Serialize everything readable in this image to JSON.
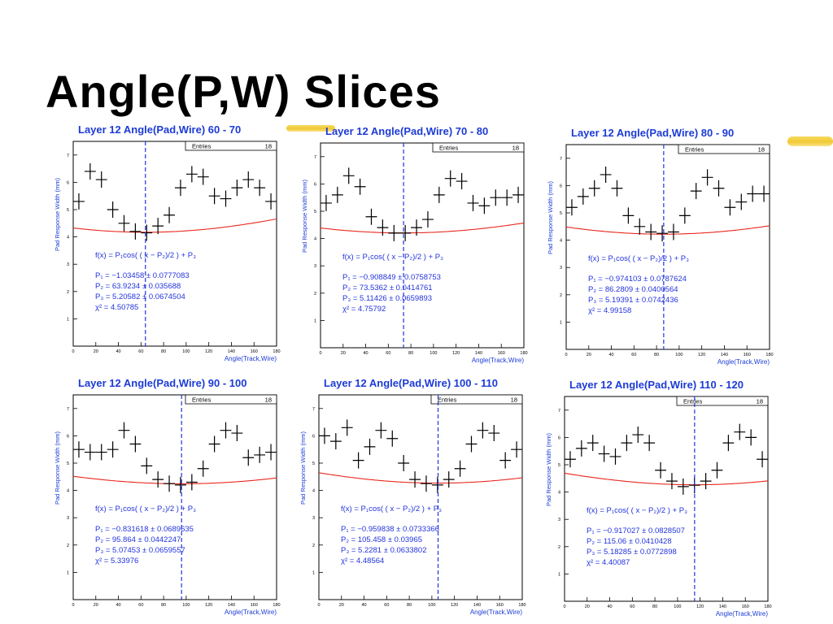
{
  "slide": {
    "title": "Angle(P,W) Slices"
  },
  "colors": {
    "title_blue": "#1c3bd6",
    "fit_red": "#e8261c",
    "marker_blue": "#2233dd",
    "data_black": "#000000",
    "accent_yellow": "#efc320"
  },
  "chart_data": [
    {
      "type": "scatter",
      "title": "Layer  12 Angle(Pad,Wire)  60 - 70",
      "xlabel": "Angle(Track,Wire)",
      "ylabel": "Pad Response Width (mm)",
      "xlim": [
        0,
        180
      ],
      "ylim": [
        0,
        7.5
      ],
      "xticks": [
        "0",
        "20",
        "40",
        "60",
        "80",
        "100",
        "120",
        "140",
        "160",
        "180"
      ],
      "yticks": [
        "1",
        "2",
        "3",
        "4",
        "5",
        "6",
        "7"
      ],
      "stats": {
        "label": "Entries",
        "value": "18"
      },
      "fit": {
        "formula": "f(x) = P₁cos( ( x − P₂)/2 ) + P₃",
        "p1": -1.03458,
        "p2": 63.9234,
        "p3": 5.20582,
        "lines": [
          "P₁ = −1.03458 ± 0.0777083",
          "P₂ = 63.9234 ± 0.035688",
          "P₃ = 5.20582 ± 0.0674504",
          "χ² = 4.50785"
        ]
      },
      "marker_x": 63.9,
      "points": [
        [
          5,
          5.3
        ],
        [
          15,
          6.4
        ],
        [
          25,
          6.1
        ],
        [
          35,
          5.0
        ],
        [
          45,
          4.5
        ],
        [
          55,
          4.2
        ],
        [
          65,
          4.15
        ],
        [
          75,
          4.4
        ],
        [
          85,
          4.8
        ],
        [
          95,
          5.8
        ],
        [
          105,
          6.3
        ],
        [
          115,
          6.2
        ],
        [
          125,
          5.5
        ],
        [
          135,
          5.4
        ],
        [
          145,
          5.8
        ],
        [
          155,
          6.1
        ],
        [
          165,
          5.8
        ],
        [
          175,
          5.3
        ]
      ]
    },
    {
      "type": "scatter",
      "title": "Layer  12 Angle(Pad,Wire)  70 - 80",
      "xlabel": "Angle(Track,Wire)",
      "ylabel": "Pad Response Width (mm)",
      "xlim": [
        0,
        180
      ],
      "ylim": [
        0,
        7.5
      ],
      "xticks": [
        "0",
        "20",
        "40",
        "60",
        "80",
        "100",
        "120",
        "140",
        "160",
        "180"
      ],
      "yticks": [
        "1",
        "2",
        "3",
        "4",
        "5",
        "6",
        "7"
      ],
      "stats": {
        "label": "Entries",
        "value": "18"
      },
      "fit": {
        "formula": "f(x) = P₁cos( ( x − P₂)/2 ) + P₃",
        "p1": -0.908849,
        "p2": 73.5362,
        "p3": 5.11426,
        "lines": [
          "P₁ = −0.908849 ± 0.0758753",
          "P₂ = 73.5362 ± 0.0414761",
          "P₃ = 5.11426 ± 0.0659893",
          "χ² = 4.75792"
        ]
      },
      "marker_x": 73.5,
      "points": [
        [
          5,
          5.3
        ],
        [
          15,
          5.6
        ],
        [
          25,
          6.3
        ],
        [
          35,
          5.9
        ],
        [
          45,
          4.8
        ],
        [
          55,
          4.4
        ],
        [
          65,
          4.2
        ],
        [
          75,
          4.2
        ],
        [
          85,
          4.4
        ],
        [
          95,
          4.7
        ],
        [
          105,
          5.6
        ],
        [
          115,
          6.2
        ],
        [
          125,
          6.1
        ],
        [
          135,
          5.3
        ],
        [
          145,
          5.2
        ],
        [
          155,
          5.5
        ],
        [
          165,
          5.5
        ],
        [
          175,
          5.6
        ]
      ]
    },
    {
      "type": "scatter",
      "title": "Layer  12 Angle(Pad,Wire)  80 - 90",
      "xlabel": "Angle(Track,Wire)",
      "ylabel": "Pad Response Width (mm)",
      "xlim": [
        0,
        180
      ],
      "ylim": [
        0,
        7.5
      ],
      "xticks": [
        "0",
        "20",
        "40",
        "60",
        "80",
        "100",
        "120",
        "140",
        "160",
        "180"
      ],
      "yticks": [
        "1",
        "2",
        "3",
        "4",
        "5",
        "6",
        "7"
      ],
      "stats": {
        "label": "Entries",
        "value": "18"
      },
      "fit": {
        "formula": "f(x) = P₁cos( ( x − P₂)/2 ) + P₃",
        "p1": -0.974103,
        "p2": 86.2809,
        "p3": 5.19391,
        "lines": [
          "P₁ = −0.974103 ± 0.0787624",
          "P₂ = 86.2809 ± 0.0400564",
          "P₃ = 5.19391 ± 0.0742436",
          "χ² = 4.99158"
        ]
      },
      "marker_x": 86.3,
      "points": [
        [
          5,
          5.2
        ],
        [
          15,
          5.6
        ],
        [
          25,
          5.9
        ],
        [
          35,
          6.4
        ],
        [
          45,
          5.9
        ],
        [
          55,
          4.9
        ],
        [
          65,
          4.5
        ],
        [
          75,
          4.3
        ],
        [
          85,
          4.25
        ],
        [
          95,
          4.3
        ],
        [
          105,
          4.9
        ],
        [
          115,
          5.8
        ],
        [
          125,
          6.3
        ],
        [
          135,
          5.9
        ],
        [
          145,
          5.2
        ],
        [
          155,
          5.4
        ],
        [
          165,
          5.7
        ],
        [
          175,
          5.7
        ]
      ]
    },
    {
      "type": "scatter",
      "title": "Layer  12 Angle(Pad,Wire)  90 - 100",
      "xlabel": "Angle(Track,Wire)",
      "ylabel": "Pad Response Width (mm)",
      "xlim": [
        0,
        180
      ],
      "ylim": [
        0,
        7.5
      ],
      "xticks": [
        "0",
        "20",
        "40",
        "60",
        "80",
        "100",
        "120",
        "140",
        "160",
        "180"
      ],
      "yticks": [
        "1",
        "2",
        "3",
        "4",
        "5",
        "6",
        "7"
      ],
      "stats": {
        "label": "Entries",
        "value": "18"
      },
      "fit": {
        "formula": "f(x) = P₁cos( ( x − P₂)/2 ) + P₃",
        "p1": -0.831618,
        "p2": 95.864,
        "p3": 5.07453,
        "lines": [
          "P₁ = −0.831618 ± 0.0689635",
          "P₂ = 95.864 ± 0.0442247",
          "P₃ = 5.07453 ± 0.0659557",
          "χ² = 5.33976"
        ]
      },
      "marker_x": 95.9,
      "points": [
        [
          5,
          5.5
        ],
        [
          15,
          5.4
        ],
        [
          25,
          5.4
        ],
        [
          35,
          5.5
        ],
        [
          45,
          6.2
        ],
        [
          55,
          5.7
        ],
        [
          65,
          4.9
        ],
        [
          75,
          4.4
        ],
        [
          85,
          4.25
        ],
        [
          95,
          4.2
        ],
        [
          105,
          4.3
        ],
        [
          115,
          4.8
        ],
        [
          125,
          5.7
        ],
        [
          135,
          6.2
        ],
        [
          145,
          6.1
        ],
        [
          155,
          5.2
        ],
        [
          165,
          5.3
        ],
        [
          175,
          5.4
        ]
      ]
    },
    {
      "type": "scatter",
      "title": "Layer  12 Angle(Pad,Wire)  100 - 110",
      "xlabel": "Angle(Track,Wire)",
      "ylabel": "Pad Response Width (mm)",
      "xlim": [
        0,
        180
      ],
      "ylim": [
        0,
        7.5
      ],
      "xticks": [
        "0",
        "20",
        "40",
        "60",
        "80",
        "100",
        "120",
        "140",
        "160",
        "180"
      ],
      "yticks": [
        "1",
        "2",
        "3",
        "4",
        "5",
        "6",
        "7"
      ],
      "stats": {
        "label": "Entries",
        "value": "18"
      },
      "fit": {
        "formula": "f(x) = P₁cos( ( x − P₂)/2 ) + P₃",
        "p1": -0.959838,
        "p2": 105.458,
        "p3": 5.2281,
        "lines": [
          "P₁ = −0.959838 ± 0.0733366",
          "P₂ = 105.458 ± 0.03965",
          "P₃ = 5.2281 ± 0.0633802",
          "χ² = 4.48564"
        ]
      },
      "marker_x": 105.5,
      "points": [
        [
          5,
          6.0
        ],
        [
          15,
          5.8
        ],
        [
          25,
          6.3
        ],
        [
          35,
          5.1
        ],
        [
          45,
          5.6
        ],
        [
          55,
          6.2
        ],
        [
          65,
          5.9
        ],
        [
          75,
          5.0
        ],
        [
          85,
          4.4
        ],
        [
          95,
          4.25
        ],
        [
          105,
          4.2
        ],
        [
          115,
          4.4
        ],
        [
          125,
          4.8
        ],
        [
          135,
          5.7
        ],
        [
          145,
          6.2
        ],
        [
          155,
          6.1
        ],
        [
          165,
          5.1
        ],
        [
          175,
          5.5
        ]
      ]
    },
    {
      "type": "scatter",
      "title": "Layer  12 Angle(Pad,Wire)  110 - 120",
      "xlabel": "Angle(Track,Wire)",
      "ylabel": "Pad Response Width (mm)",
      "xlim": [
        0,
        180
      ],
      "ylim": [
        0,
        7.5
      ],
      "xticks": [
        "0",
        "20",
        "40",
        "60",
        "80",
        "100",
        "120",
        "140",
        "160",
        "180"
      ],
      "yticks": [
        "1",
        "2",
        "3",
        "4",
        "5",
        "6",
        "7"
      ],
      "stats": {
        "label": "Entries",
        "value": "18"
      },
      "fit": {
        "formula": "f(x) = P₁cos( ( x − P₂)/2 ) + P₃",
        "p1": -0.917027,
        "p2": 115.06,
        "p3": 5.18285,
        "lines": [
          "P₁ = −0.917027 ± 0.0828507",
          "P₂ = 115.06 ± 0.0410428",
          "P₃ = 5.18285 ± 0.0772898",
          "χ² = 4.40087"
        ]
      },
      "marker_x": 115.1,
      "points": [
        [
          5,
          5.2
        ],
        [
          15,
          5.6
        ],
        [
          25,
          5.8
        ],
        [
          35,
          5.4
        ],
        [
          45,
          5.3
        ],
        [
          55,
          5.8
        ],
        [
          65,
          6.1
        ],
        [
          75,
          5.8
        ],
        [
          85,
          4.8
        ],
        [
          95,
          4.4
        ],
        [
          105,
          4.2
        ],
        [
          115,
          4.25
        ],
        [
          125,
          4.4
        ],
        [
          135,
          4.8
        ],
        [
          145,
          5.8
        ],
        [
          155,
          6.2
        ],
        [
          165,
          6.0
        ],
        [
          175,
          5.2
        ]
      ]
    }
  ]
}
